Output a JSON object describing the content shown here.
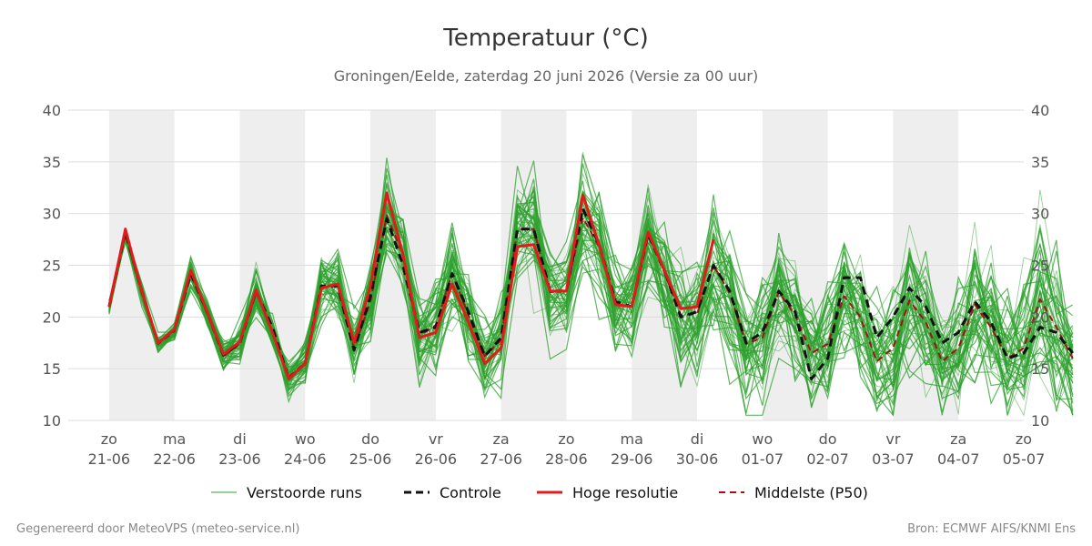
{
  "chart_data": {
    "type": "line",
    "title": "Temperatuur (°C)",
    "subtitle": "Groningen/Eelde, zaterdag 20 juni 2026 (Versie za 00 uur)",
    "ylim": [
      10,
      40
    ],
    "yticks": [
      10,
      15,
      20,
      25,
      30,
      35,
      40
    ],
    "x_step_hours": 6,
    "x_start_offset_hours": -15,
    "x_end_offset_hours": 336,
    "day_labels": [
      {
        "day": "zo",
        "date": "21-06"
      },
      {
        "day": "ma",
        "date": "22-06"
      },
      {
        "day": "di",
        "date": "23-06"
      },
      {
        "day": "wo",
        "date": "24-06"
      },
      {
        "day": "do",
        "date": "25-06"
      },
      {
        "day": "vr",
        "date": "26-06"
      },
      {
        "day": "za",
        "date": "27-06"
      },
      {
        "day": "zo",
        "date": "28-06"
      },
      {
        "day": "ma",
        "date": "29-06"
      },
      {
        "day": "di",
        "date": "30-06"
      },
      {
        "day": "wo",
        "date": "01-07"
      },
      {
        "day": "do",
        "date": "02-07"
      },
      {
        "day": "vr",
        "date": "03-07"
      },
      {
        "day": "za",
        "date": "04-07"
      },
      {
        "day": "zo",
        "date": "05-07"
      }
    ],
    "shaded_days": [
      "21-06",
      "23-06",
      "25-06",
      "27-06",
      "29-06",
      "01-07",
      "03-07"
    ],
    "grid": true,
    "legend_position": "bottom",
    "colors": {
      "ensemble": "#2ca02c",
      "controle": "#111111",
      "hoge_resolutie": "#e31a1c",
      "middelste": "#a50f15",
      "shade": "#eeeeee",
      "grid": "#dddddd"
    },
    "series": [
      {
        "name": "Controle",
        "style": "dashed",
        "values": [
          21.0,
          28.3,
          22.5,
          17.5,
          18.8,
          24.2,
          20.5,
          16.3,
          17.5,
          22.5,
          19.0,
          14.0,
          15.5,
          23.0,
          23.0,
          16.8,
          22.0,
          29.5,
          25.0,
          18.5,
          19.0,
          24.2,
          20.5,
          16.2,
          18.0,
          28.5,
          28.5,
          22.5,
          22.5,
          30.5,
          27.0,
          21.5,
          21.0,
          28.0,
          24.5,
          20.0,
          20.5,
          25.0,
          22.5,
          17.5,
          18.5,
          22.5,
          20.5,
          14.0,
          16.0,
          23.8,
          23.8,
          18.0,
          20.0,
          22.8,
          21.0,
          17.5,
          18.5,
          21.5,
          19.5,
          16.0,
          16.5,
          19.0,
          18.5,
          16.5
        ]
      },
      {
        "name": "Hoge resolutie",
        "style": "solid",
        "values": [
          21.0,
          28.5,
          22.5,
          17.5,
          18.8,
          24.5,
          20.5,
          16.4,
          17.6,
          22.6,
          18.5,
          14.0,
          15.5,
          22.8,
          23.2,
          17.5,
          23.0,
          32.0,
          26.0,
          18.0,
          18.5,
          23.2,
          19.5,
          15.5,
          17.0,
          26.8,
          27.0,
          22.5,
          22.5,
          31.8,
          27.0,
          21.2,
          21.0,
          28.2,
          24.5,
          20.8,
          21.0,
          27.5
        ]
      },
      {
        "name": "Middelste (P50)",
        "style": "dashed",
        "values": [
          21.0,
          28.0,
          22.3,
          17.4,
          18.6,
          24.2,
          20.3,
          16.2,
          17.4,
          22.4,
          18.6,
          14.2,
          15.6,
          23.0,
          23.0,
          17.0,
          21.5,
          29.8,
          26.0,
          18.2,
          19.2,
          24.2,
          20.2,
          16.2,
          17.8,
          28.5,
          28.5,
          22.4,
          22.5,
          29.6,
          26.8,
          21.2,
          21.0,
          28.0,
          24.3,
          20.2,
          20.3,
          25.0,
          22.3,
          17.4,
          18.0,
          22.4,
          20.2,
          16.5,
          17.4,
          22.0,
          20.0,
          15.7,
          17.0,
          21.6,
          19.5,
          15.7,
          17.0,
          21.2,
          19.0,
          16.0,
          17.0,
          21.7,
          19.0,
          16.0
        ]
      }
    ],
    "ensemble_runs_label": "Verstoorde runs",
    "ensemble_runs_count": 50,
    "ensemble_spread_p50_offsets": [
      0.5,
      0.6,
      0.8,
      0.5,
      0.6,
      1.0,
      1.1,
      1.2,
      1.4,
      1.6,
      1.4,
      1.4,
      1.6,
      2.4,
      2.6,
      2.4,
      2.6,
      3.2,
      3.2,
      3.0,
      3.0,
      3.4,
      3.2,
      3.0,
      3.2,
      3.8,
      3.8,
      3.4,
      3.4,
      4.2,
      4.0,
      3.6,
      3.6,
      4.4,
      4.2,
      3.8,
      3.8,
      4.6,
      4.4,
      4.0,
      4.0,
      4.8,
      4.6,
      4.2,
      4.2,
      5.0,
      4.8,
      4.4,
      4.4,
      5.2,
      5.0,
      4.6,
      4.6,
      5.4,
      5.2,
      4.8,
      4.8,
      5.6,
      5.4,
      5.0
    ]
  },
  "legend": [
    {
      "key": "ensemble",
      "label": "Verstoorde runs"
    },
    {
      "key": "controle",
      "label": "Controle"
    },
    {
      "key": "hoge_resolutie",
      "label": "Hoge resolutie"
    },
    {
      "key": "middelste",
      "label": "Middelste (P50)"
    }
  ],
  "footer": {
    "left": "Gegenereerd door MeteoVPS (meteo-service.nl)",
    "right": "Bron: ECMWF AIFS/KNMI Ens"
  }
}
